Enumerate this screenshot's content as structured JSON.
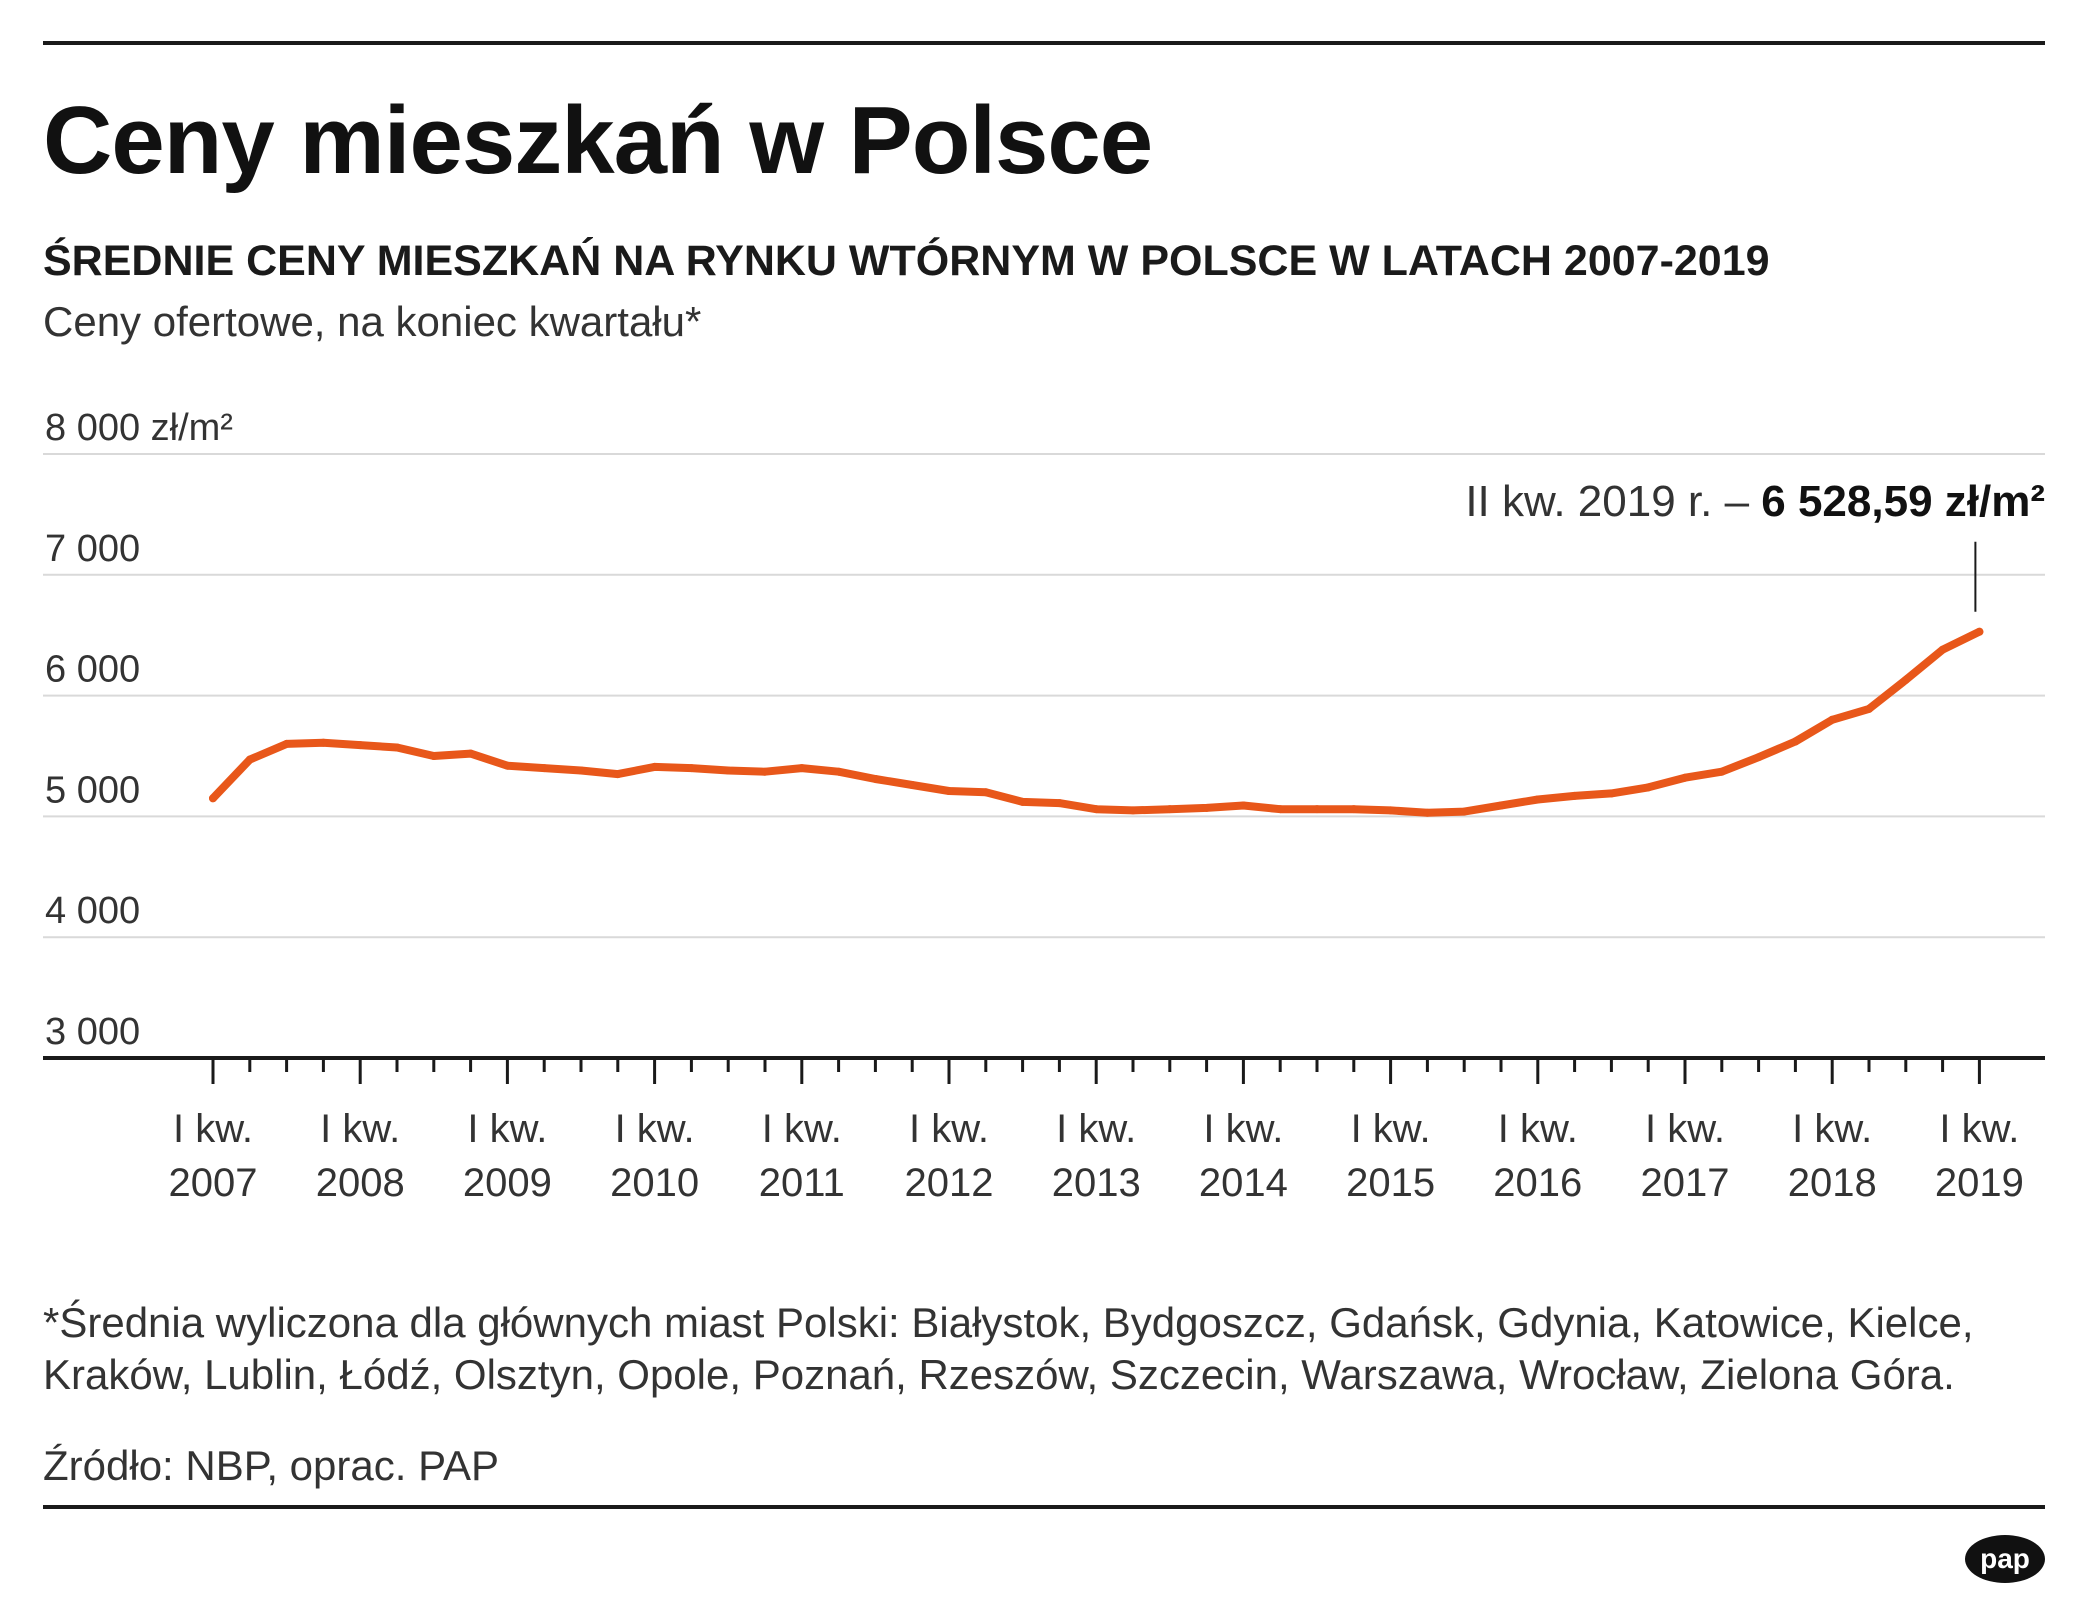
{
  "title": "Ceny mieszkań w Polsce",
  "subtitle": "ŚREDNIE CENY MIESZKAŃ NA RYNKU WTÓRNYM W POLSCE W LATACH 2007-2019",
  "description": "Ceny ofertowe, na koniec kwartału*",
  "footnote_lines": [
    "*Średnia wyliczona dla głównych miast Polski: Białystok, Bydgoszcz, Gdańsk, Gdynia, Katowice, Kielce,",
    "Kraków, Lublin, Łódź, Olsztyn, Opole, Poznań, Rzeszów, Szczecin, Warszawa, Wrocław, Zielona Góra."
  ],
  "source": "Źródło: NBP, oprac. PAP",
  "logo_text": "pap",
  "colors": {
    "line": "#e8571a",
    "grid": "#d9d9d9",
    "axis": "#1a1a1a",
    "text": "#333333"
  },
  "chart_data": {
    "type": "line",
    "ylim": [
      3000,
      8000
    ],
    "y_ticks": [
      {
        "value": 8000,
        "label": "8 000 zł/m²"
      },
      {
        "value": 7000,
        "label": "7 000"
      },
      {
        "value": 6000,
        "label": "6 000"
      },
      {
        "value": 5000,
        "label": "5 000"
      },
      {
        "value": 4000,
        "label": "4 000"
      },
      {
        "value": 3000,
        "label": "3 000"
      }
    ],
    "x_labels": [
      {
        "line1": "I kw.",
        "line2": "2007"
      },
      {
        "line1": "I kw.",
        "line2": "2008"
      },
      {
        "line1": "I kw.",
        "line2": "2009"
      },
      {
        "line1": "I kw.",
        "line2": "2010"
      },
      {
        "line1": "I kw.",
        "line2": "2011"
      },
      {
        "line1": "I kw.",
        "line2": "2012"
      },
      {
        "line1": "I kw.",
        "line2": "2013"
      },
      {
        "line1": "I kw.",
        "line2": "2014"
      },
      {
        "line1": "I kw.",
        "line2": "2015"
      },
      {
        "line1": "I kw.",
        "line2": "2016"
      },
      {
        "line1": "I kw.",
        "line2": "2017"
      },
      {
        "line1": "I kw.",
        "line2": "2018"
      },
      {
        "line1": "I kw.",
        "line2": "2019"
      }
    ],
    "series": [
      {
        "values": [
          5150,
          5470,
          5600,
          5610,
          5590,
          5570,
          5500,
          5520,
          5420,
          5400,
          5380,
          5350,
          5410,
          5400,
          5380,
          5370,
          5400,
          5370,
          5310,
          5260,
          5210,
          5200,
          5120,
          5110,
          5060,
          5050,
          5060,
          5070,
          5090,
          5060,
          5060,
          5060,
          5050,
          5030,
          5040,
          5090,
          5140,
          5170,
          5190,
          5240,
          5320,
          5370,
          5490,
          5620,
          5800,
          5890,
          6130,
          6380,
          6528.59
        ]
      }
    ],
    "annotation": {
      "prefix": "II kw. 2019 r. – ",
      "value": "6 528,59 zł/m²",
      "point_index": 48
    }
  }
}
